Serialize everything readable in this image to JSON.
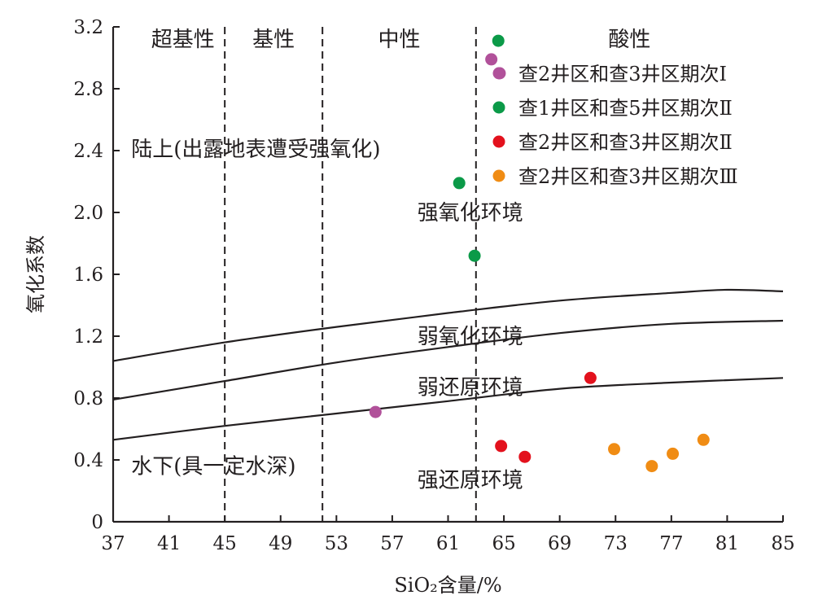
{
  "chart_data": {
    "type": "scatter",
    "xlabel": "SiO₂含量/%",
    "ylabel": "氧化系数",
    "xlim": [
      37,
      85
    ],
    "ylim": [
      0,
      3.2
    ],
    "x_ticks": [
      37,
      41,
      45,
      49,
      53,
      57,
      61,
      65,
      69,
      73,
      77,
      81,
      85
    ],
    "y_ticks": [
      0,
      0.4,
      0.8,
      1.2,
      1.6,
      2.0,
      2.4,
      2.8,
      3.2
    ],
    "y_tick_labels": [
      "0",
      "0.4",
      "0.8",
      "1.2",
      "1.6",
      "2.0",
      "2.4",
      "2.8",
      "3.2"
    ],
    "grid": false,
    "legend_position": "top-right",
    "dividers": [
      {
        "x": 45,
        "style": "dashed"
      },
      {
        "x": 52,
        "style": "dashed"
      },
      {
        "x": 63,
        "style": "dashed"
      }
    ],
    "regions": [
      {
        "label": "超基性",
        "x_from": 37,
        "x_to": 45
      },
      {
        "label": "基性",
        "x_from": 45,
        "x_to": 52
      },
      {
        "label": "中性",
        "x_from": 52,
        "x_to": 63
      },
      {
        "label": "酸性",
        "x_from": 63,
        "x_to": 85
      }
    ],
    "boundary_curves": [
      {
        "x": [
          37,
          45,
          53,
          61,
          69,
          77,
          81,
          85
        ],
        "y": [
          1.04,
          1.16,
          1.26,
          1.35,
          1.43,
          1.48,
          1.5,
          1.49
        ]
      },
      {
        "x": [
          37,
          45,
          53,
          61,
          69,
          77,
          85
        ],
        "y": [
          0.79,
          0.91,
          1.03,
          1.13,
          1.22,
          1.28,
          1.3
        ]
      },
      {
        "x": [
          37,
          45,
          53,
          61,
          69,
          77,
          85
        ],
        "y": [
          0.53,
          0.62,
          0.7,
          0.78,
          0.86,
          0.9,
          0.93
        ]
      }
    ],
    "annotations": [
      {
        "text": "陆上(出露地表遭受强氧化)",
        "x": 38.3,
        "y": 2.41
      },
      {
        "text": "强氧化环境",
        "x": 58.8,
        "y": 2.0
      },
      {
        "text": "弱氧化环境",
        "x": 58.8,
        "y": 1.2
      },
      {
        "text": "弱还原环境",
        "x": 58.8,
        "y": 0.87
      },
      {
        "text": "水下(具一定水深)",
        "x": 38.3,
        "y": 0.36
      },
      {
        "text": "强还原环境",
        "x": 58.8,
        "y": 0.27
      }
    ],
    "series": [
      {
        "name": "查2井区和查3井区期次Ⅰ",
        "color": "#b1519a",
        "points": [
          [
            64.1,
            2.99
          ],
          [
            64.7,
            2.9
          ],
          [
            55.8,
            0.71
          ]
        ]
      },
      {
        "name": "查1井区和查5井区期次Ⅱ",
        "color": "#0b9a48",
        "points": [
          [
            64.6,
            3.11
          ],
          [
            61.8,
            2.19
          ],
          [
            62.9,
            1.72
          ]
        ]
      },
      {
        "name": "查2井区和查3井区期次Ⅱ",
        "color": "#e3111d",
        "points": [
          [
            71.2,
            0.93
          ],
          [
            64.8,
            0.49
          ],
          [
            66.5,
            0.42
          ]
        ]
      },
      {
        "name": "查2井区和查3井区期次Ⅲ",
        "color": "#f08c14",
        "points": [
          [
            72.9,
            0.47
          ],
          [
            75.6,
            0.36
          ],
          [
            77.1,
            0.44
          ],
          [
            79.3,
            0.53
          ]
        ]
      }
    ]
  }
}
